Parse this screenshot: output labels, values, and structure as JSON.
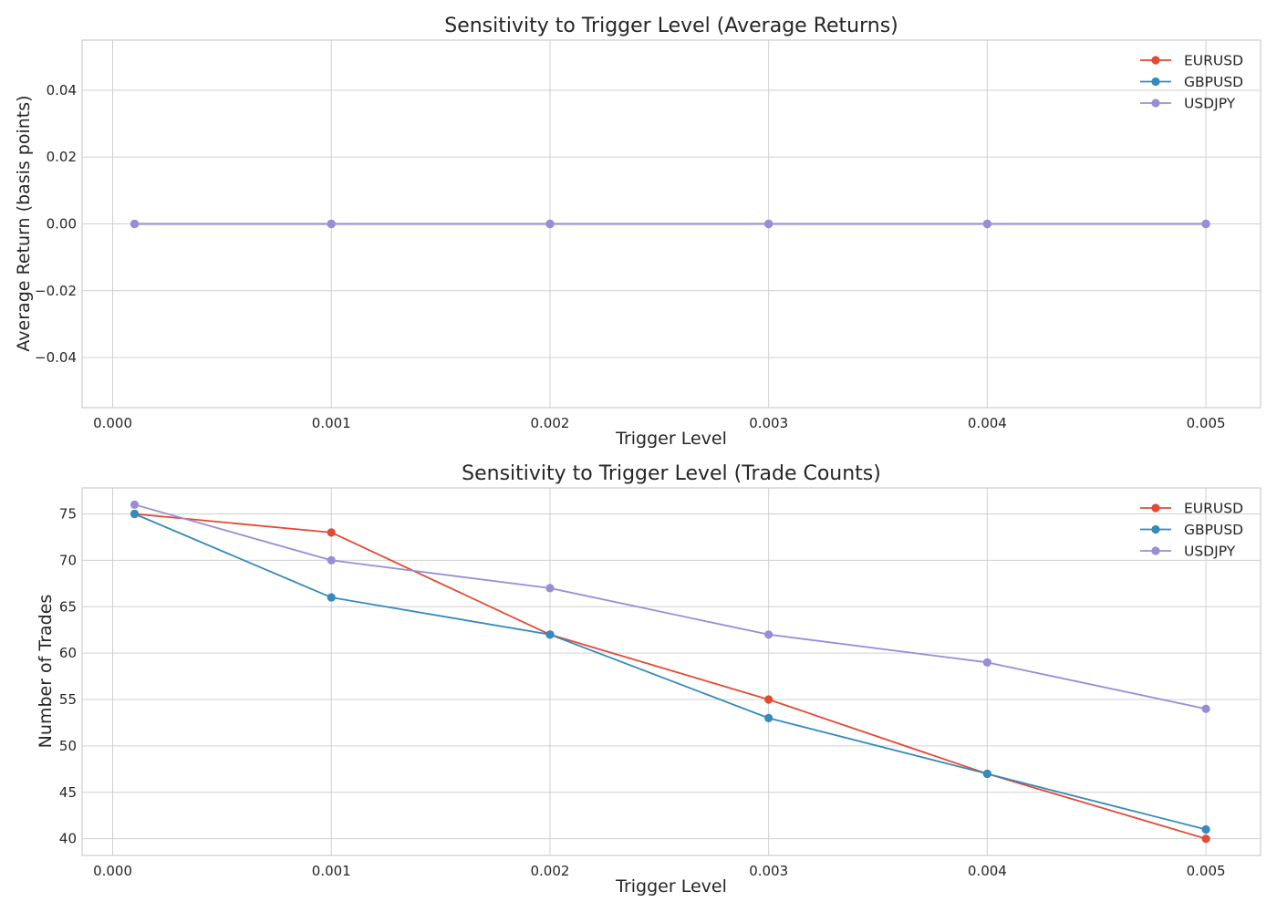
{
  "chart_data": [
    {
      "type": "line",
      "title": "Sensitivity to Trigger Level (Average Returns)",
      "xlabel": "Trigger Level",
      "ylabel": "Average Return (basis points)",
      "x": [
        0.0001,
        0.001,
        0.002,
        0.003,
        0.004,
        0.005
      ],
      "xticks": [
        0.0,
        0.001,
        0.002,
        0.003,
        0.004,
        0.005
      ],
      "xtick_labels": [
        "0.000",
        "0.001",
        "0.002",
        "0.003",
        "0.004",
        "0.005"
      ],
      "xlim": [
        -0.00014,
        0.00525
      ],
      "yticks": [
        -0.04,
        -0.02,
        0.0,
        0.02,
        0.04
      ],
      "ytick_labels": [
        "−0.04",
        "−0.02",
        "0.00",
        "0.02",
        "0.04"
      ],
      "ylim": [
        -0.055,
        0.055
      ],
      "grid": true,
      "legend": "top-right",
      "series": [
        {
          "name": "EURUSD",
          "color": "#E24A33",
          "values": [
            0,
            0,
            0,
            0,
            0,
            0
          ]
        },
        {
          "name": "GBPUSD",
          "color": "#348ABD",
          "values": [
            0,
            0,
            0,
            0,
            0,
            0
          ]
        },
        {
          "name": "USDJPY",
          "color": "#988ED5",
          "values": [
            0,
            0,
            0,
            0,
            0,
            0
          ]
        }
      ]
    },
    {
      "type": "line",
      "title": "Sensitivity to Trigger Level (Trade Counts)",
      "xlabel": "Trigger Level",
      "ylabel": "Number of Trades",
      "x": [
        0.0001,
        0.001,
        0.002,
        0.003,
        0.004,
        0.005
      ],
      "xticks": [
        0.0,
        0.001,
        0.002,
        0.003,
        0.004,
        0.005
      ],
      "xtick_labels": [
        "0.000",
        "0.001",
        "0.002",
        "0.003",
        "0.004",
        "0.005"
      ],
      "xlim": [
        -0.00014,
        0.00525
      ],
      "yticks": [
        40,
        45,
        50,
        55,
        60,
        65,
        70,
        75
      ],
      "ytick_labels": [
        "40",
        "45",
        "50",
        "55",
        "60",
        "65",
        "70",
        "75"
      ],
      "ylim": [
        38.2,
        77.8
      ],
      "grid": true,
      "legend": "top-right",
      "series": [
        {
          "name": "EURUSD",
          "color": "#E24A33",
          "values": [
            75,
            73,
            62,
            55,
            47,
            40
          ]
        },
        {
          "name": "GBPUSD",
          "color": "#348ABD",
          "values": [
            75,
            66,
            62,
            53,
            47,
            41
          ]
        },
        {
          "name": "USDJPY",
          "color": "#988ED5",
          "values": [
            76,
            70,
            67,
            62,
            59,
            54
          ]
        }
      ]
    }
  ]
}
